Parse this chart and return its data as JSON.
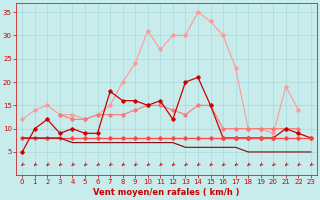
{
  "x": [
    0,
    1,
    2,
    3,
    4,
    5,
    6,
    7,
    8,
    9,
    10,
    11,
    12,
    13,
    14,
    15,
    16,
    17,
    18,
    19,
    20,
    21,
    22,
    23
  ],
  "lines": [
    {
      "label": "line1_light_pink",
      "color": "#FF9999",
      "lw": 0.8,
      "marker": "D",
      "ms": 1.8,
      "y": [
        12,
        14,
        15,
        13,
        13,
        12,
        13,
        15,
        20,
        24,
        31,
        27,
        30,
        30,
        35,
        33,
        30,
        23,
        10,
        10,
        9,
        19,
        14,
        null
      ]
    },
    {
      "label": "line2_medium_pink",
      "color": "#FF7777",
      "lw": 0.8,
      "marker": "D",
      "ms": 1.8,
      "y": [
        null,
        null,
        null,
        13,
        12,
        12,
        13,
        13,
        13,
        14,
        15,
        15,
        14,
        13,
        15,
        15,
        10,
        10,
        10,
        10,
        10,
        10,
        10,
        null
      ]
    },
    {
      "label": "line3_dark_red",
      "color": "#CC0000",
      "lw": 0.9,
      "marker": "D",
      "ms": 1.8,
      "y": [
        5,
        10,
        12,
        9,
        10,
        9,
        9,
        18,
        16,
        16,
        15,
        16,
        12,
        20,
        21,
        15,
        8,
        8,
        8,
        8,
        8,
        10,
        9,
        8
      ]
    },
    {
      "label": "line4_flat_red",
      "color": "#FF4444",
      "lw": 0.9,
      "marker": "D",
      "ms": 1.8,
      "y": [
        8,
        8,
        8,
        8,
        8,
        8,
        8,
        8,
        8,
        8,
        8,
        8,
        8,
        8,
        8,
        8,
        8,
        8,
        8,
        8,
        8,
        8,
        8,
        8
      ]
    },
    {
      "label": "line5_dark_line",
      "color": "#880000",
      "lw": 0.8,
      "marker": null,
      "ms": 0,
      "y": [
        8,
        8,
        8,
        8,
        7,
        7,
        7,
        7,
        7,
        7,
        7,
        7,
        7,
        6,
        6,
        6,
        6,
        6,
        5,
        5,
        5,
        5,
        5,
        5
      ]
    }
  ],
  "xlim": [
    -0.5,
    23.5
  ],
  "ylim": [
    0,
    37
  ],
  "yticks": [
    5,
    10,
    15,
    20,
    25,
    30,
    35
  ],
  "xticks": [
    0,
    1,
    2,
    3,
    4,
    5,
    6,
    7,
    8,
    9,
    10,
    11,
    12,
    13,
    14,
    15,
    16,
    17,
    18,
    19,
    20,
    21,
    22,
    23
  ],
  "xlabel": "Vent moyen/en rafales ( km/h )",
  "bg_color": "#C8ECEC",
  "grid_color": "#A8D8D8",
  "tick_color": "#CC0000",
  "label_color": "#CC0000",
  "arrow_color": "#CC0000"
}
